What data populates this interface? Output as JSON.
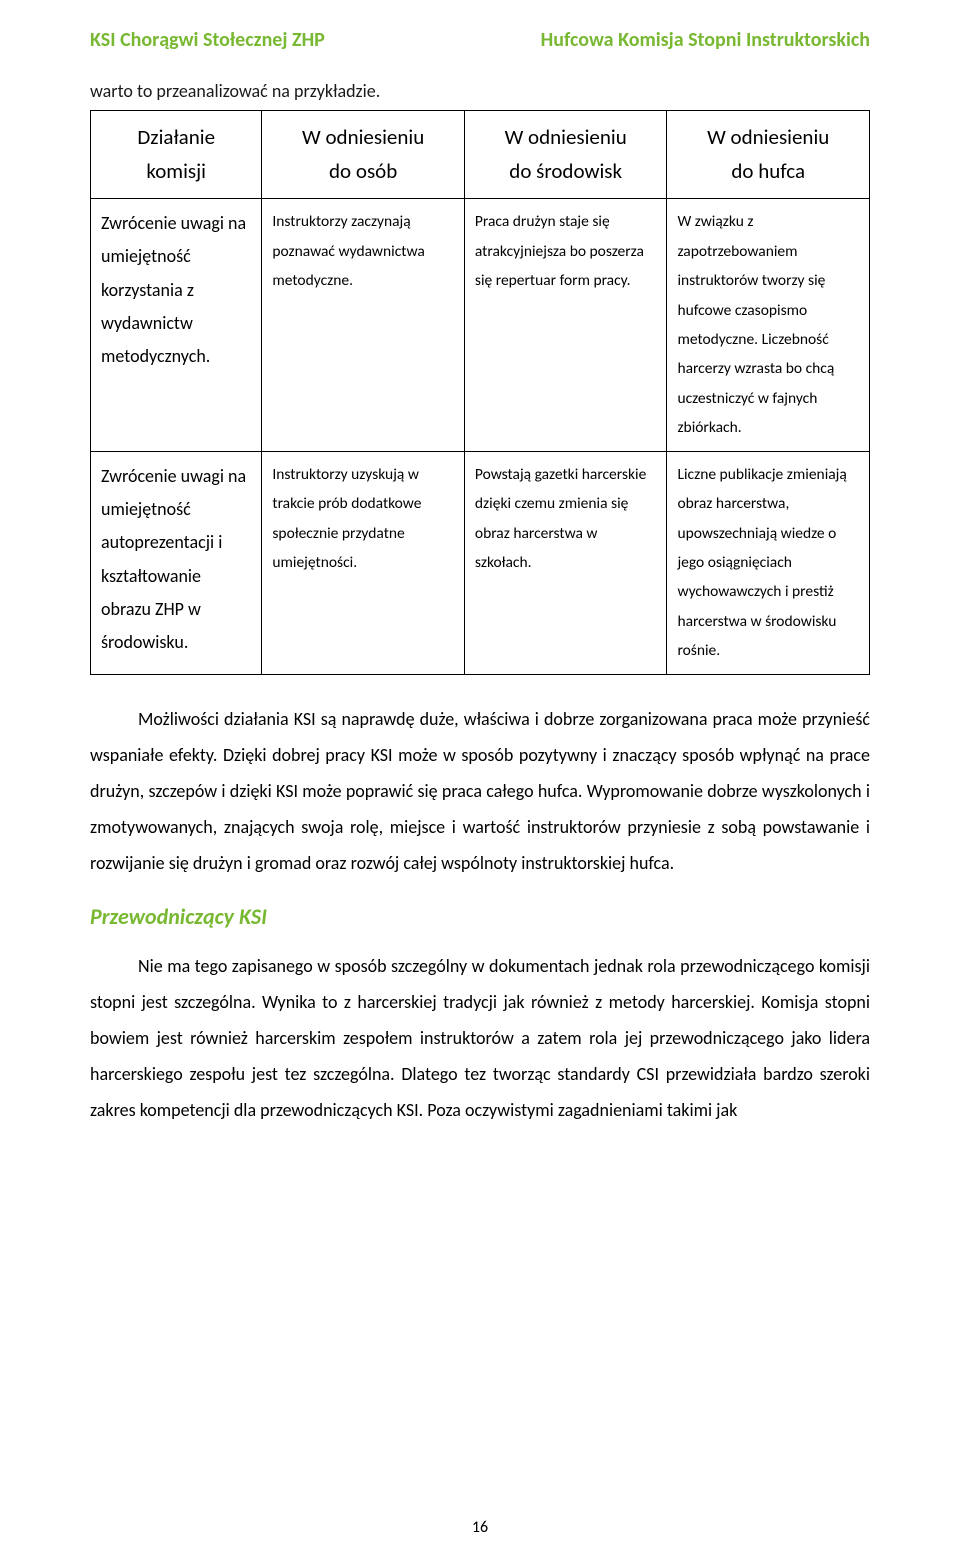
{
  "header": {
    "left": "KSI Chorągwi Stołecznej ZHP",
    "right": "Hufcowa Komisja Stopni Instruktorskich"
  },
  "intro": "warto to przeanalizować na przykładzie.",
  "table": {
    "headers": {
      "c0a": "Działanie",
      "c0b": "komisji",
      "c1a": "W odniesieniu",
      "c1b": "do osób",
      "c2a": "W odniesieniu",
      "c2b": "do środowisk",
      "c3a": "W odniesieniu",
      "c3b": "do hufca"
    },
    "rows": [
      {
        "label": "Zwrócenie uwagi na umiejętność korzystania z wydawnictw metodycznych.",
        "c1": "Instruktorzy zaczynają poznawać wydawnictwa metodyczne.",
        "c2": "Praca drużyn staje się atrakcyjniejsza bo poszerza się repertuar form pracy.",
        "c3": "W związku z zapotrzebowaniem instruktorów tworzy się hufcowe czasopismo metodyczne. Liczebność harcerzy wzrasta bo chcą uczestniczyć w fajnych zbiórkach."
      },
      {
        "label": "Zwrócenie uwagi na umiejętność autoprezentacji i kształtowanie obrazu ZHP w środowisku.",
        "c1": "Instruktorzy uzyskują w trakcie prób dodatkowe społecznie przydatne umiejętności.",
        "c2": "Powstają gazetki harcerskie dzięki czemu zmienia się obraz harcerstwa w szkołach.",
        "c3": "Liczne publikacje zmieniają obraz harcerstwa, upowszechniają wiedze o jego osiągnięciach wychowawczych i prestiż harcerstwa w środowisku rośnie."
      }
    ]
  },
  "para1": "Możliwości działania KSI są naprawdę duże, właściwa i dobrze zorganizowana praca może przynieść wspaniałe efekty. Dzięki dobrej pracy KSI może w sposób pozytywny i znaczący sposób wpłynąć na prace drużyn, szczepów i dzięki KSI może  poprawić się praca całego hufca. Wypromowanie dobrze wyszkolonych i zmotywowanych, znających swoja rolę, miejsce i wartość instruktorów przyniesie z sobą powstawanie i rozwijanie się drużyn i gromad oraz rozwój całej wspólnoty instruktorskiej hufca.",
  "section_title": "Przewodniczący KSI",
  "para2": "Nie ma tego zapisanego w sposób szczególny w dokumentach jednak rola przewodniczącego komisji stopni jest szczególna. Wynika to z harcerskiej tradycji jak również z metody harcerskiej. Komisja stopni bowiem jest również harcerskim zespołem instruktorów a zatem rola jej przewodniczącego jako lidera harcerskiego zespołu jest tez szczególna. Dlatego tez tworząc standardy CSI przewidziała bardzo szeroki zakres kompetencji dla przewodniczących KSI. Poza oczywistymi zagadnieniami takimi jak",
  "page_number": "16",
  "colors": {
    "accent": "#78b832",
    "text": "#000000",
    "border": "#000000"
  }
}
